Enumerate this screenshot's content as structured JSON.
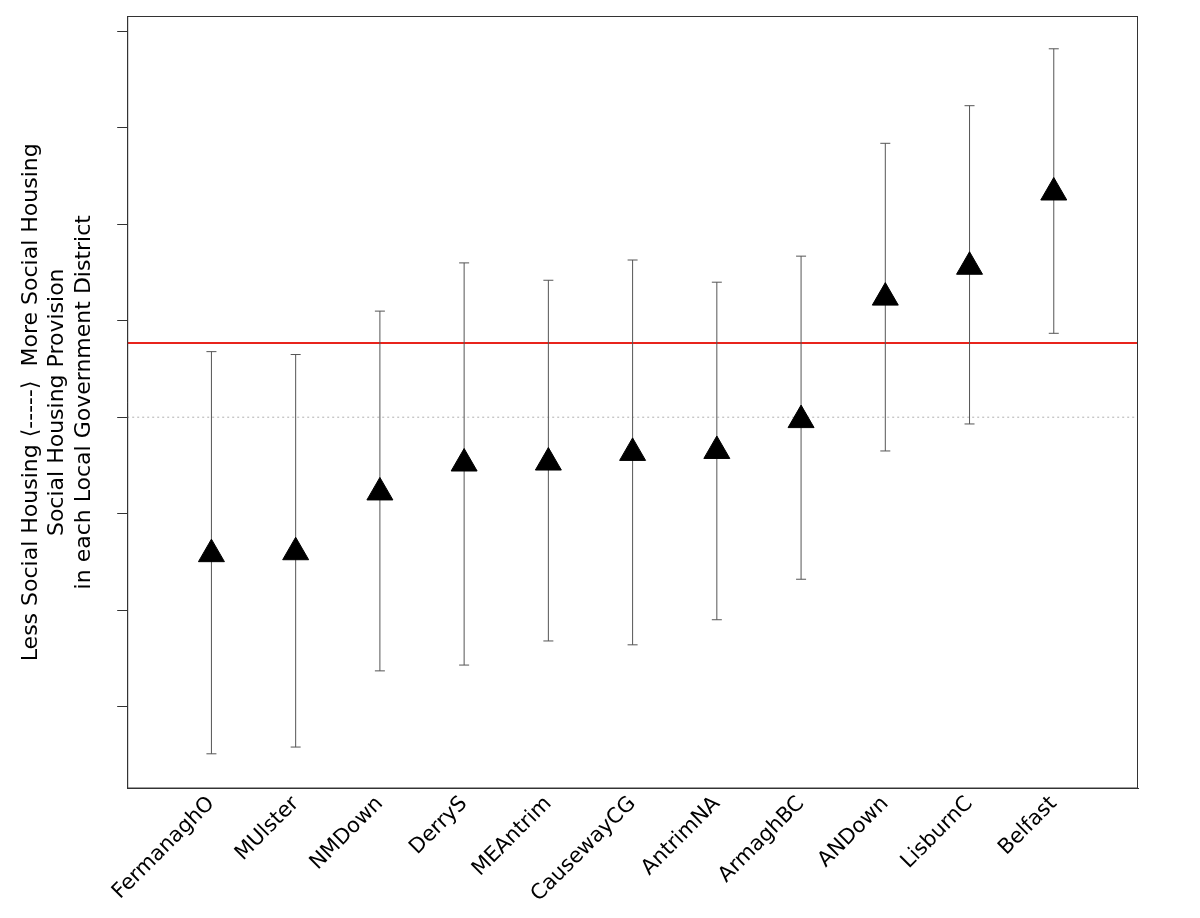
{
  "chart_data": {
    "type": "scatter",
    "categories": [
      "FermanaghO",
      "MUlster",
      "NMDown",
      "DerryS",
      "MEAntrim",
      "CausewayCG",
      "AntrimNA",
      "ArmaghBC",
      "ANDown",
      "LisburnC",
      "Belfast"
    ],
    "values": [
      -1.42,
      -1.4,
      -0.78,
      -0.48,
      -0.47,
      -0.37,
      -0.35,
      -0.03,
      1.24,
      1.56,
      2.33
    ],
    "lower": [
      -3.49,
      -3.42,
      -2.63,
      -2.57,
      -2.32,
      -2.36,
      -2.1,
      -1.68,
      -0.35,
      -0.07,
      0.87
    ],
    "upper": [
      0.68,
      0.65,
      1.1,
      1.6,
      1.42,
      1.63,
      1.4,
      1.67,
      2.84,
      3.23,
      3.82
    ],
    "color": "#000000",
    "marker": "triangle",
    "ylabel": [
      "Less Social Housing ⟨-----⟩  More Social Housing",
      "Social Housing Provision",
      "in each Local Government District"
    ],
    "ylim": [
      -3.85,
      4.16
    ],
    "yticks": [
      -3,
      -2,
      -1,
      0,
      1,
      2,
      3,
      4
    ],
    "hlines": [
      {
        "value": 0.77,
        "color": "#e8241c",
        "line_style": "solid"
      },
      {
        "value": 0,
        "color": "#b0b0b0",
        "line_style": "dotted"
      }
    ],
    "tick_labels": "x",
    "grid": false
  }
}
